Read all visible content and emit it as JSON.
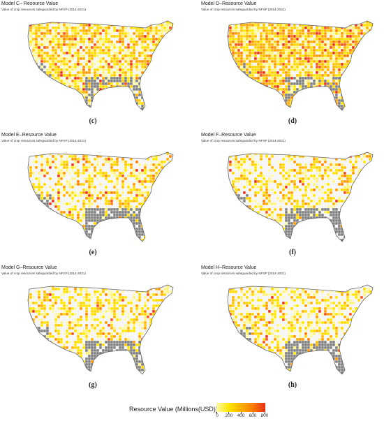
{
  "panels": [
    {
      "title": "Model C– Resource Value",
      "subtitle": "Value of crop resources safeguarded by NFSP (2014-2021)",
      "label": "(c)",
      "yellow": 0.55,
      "orange": 0.22,
      "red": 0.05,
      "gray": 0.25
    },
    {
      "title": "Model D–Resource Value",
      "subtitle": "Value of crop resources safeguarded by NFSP (2014-2021)",
      "label": "(d)",
      "yellow": 0.45,
      "orange": 0.35,
      "red": 0.1,
      "gray": 0.2
    },
    {
      "title": "Model E–Resource Value",
      "subtitle": "Value of crop resources safeguarded by NFSP (2014-2021)",
      "label": "(e)",
      "yellow": 0.35,
      "orange": 0.15,
      "red": 0.03,
      "gray": 0.35
    },
    {
      "title": "Model F–Resource Value",
      "subtitle": "Value of crop resources safeguarded by NFSP (2014-2021)",
      "label": "(f)",
      "yellow": 0.35,
      "orange": 0.12,
      "red": 0.02,
      "gray": 0.35
    },
    {
      "title": "Model G–Resource Value",
      "subtitle": "Value of crop resources safeguarded by NFSP (2014-2021)",
      "label": "(g)",
      "yellow": 0.4,
      "orange": 0.12,
      "red": 0.02,
      "gray": 0.33
    },
    {
      "title": "Model H–Resource Value",
      "subtitle": "Value of crop resources safeguarded by NFSP (2014-2021)",
      "label": "(h)",
      "yellow": 0.4,
      "orange": 0.12,
      "red": 0.02,
      "gray": 0.33
    }
  ],
  "legend": {
    "title": "Resource Value (Millions(USD))",
    "ticks": [
      "0",
      "200",
      "400",
      "600",
      "800"
    ],
    "colors": [
      "#fff9a6",
      "#ffe600",
      "#ffb000",
      "#ff7a00",
      "#e8301a"
    ]
  },
  "map_colors": {
    "gray": "#7f7f7f",
    "outline": "#ffffff",
    "empty": "#f4f4f4"
  }
}
